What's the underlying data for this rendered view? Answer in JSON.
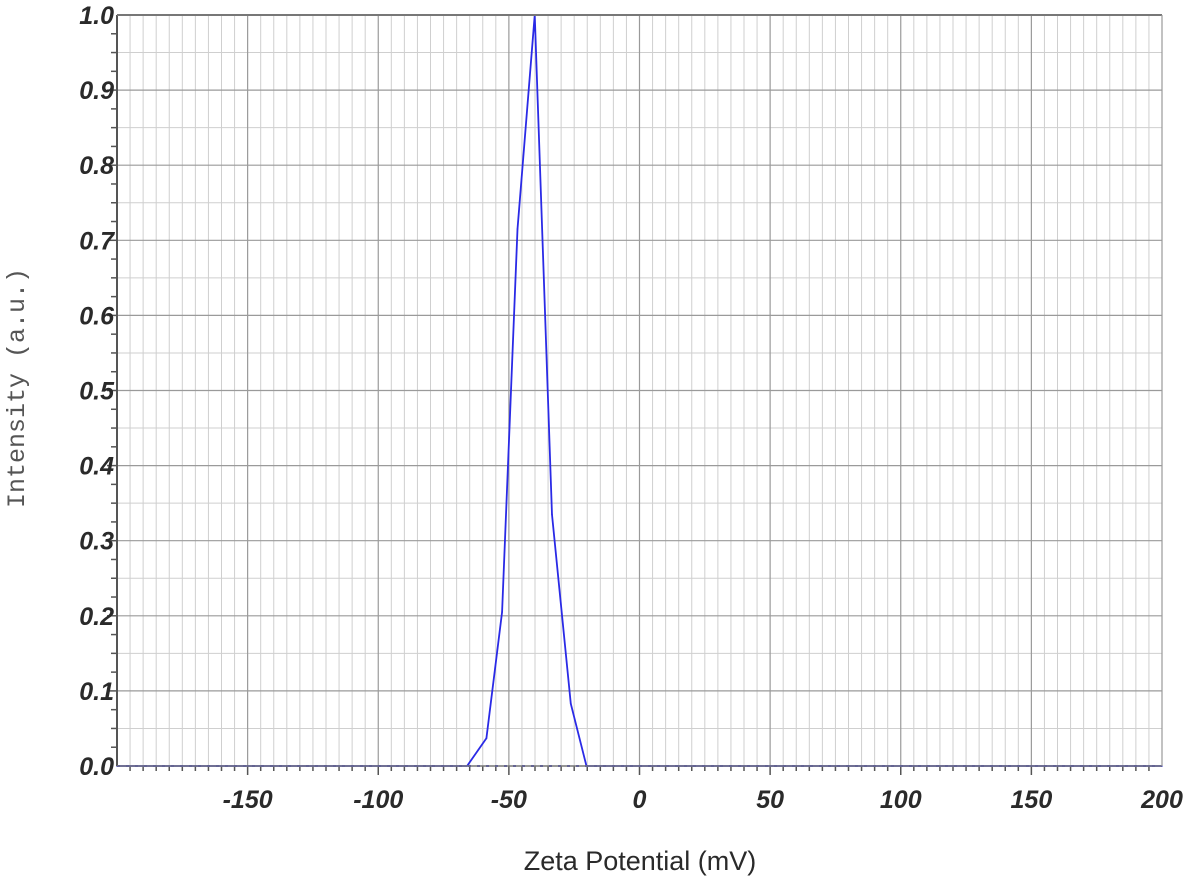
{
  "chart_data": {
    "type": "line",
    "title": "",
    "xlabel": "Zeta Potential (mV)",
    "ylabel": "Intensity (a.u.)",
    "xlim": [
      -200,
      200
    ],
    "ylim": [
      0,
      1.0
    ],
    "x_ticks": [
      -150,
      -100,
      -50,
      0,
      50,
      100,
      150,
      200
    ],
    "x_tick_labels": [
      "-150",
      "-100",
      "-50",
      "0",
      "50",
      "100",
      "150",
      "200"
    ],
    "y_ticks": [
      0.0,
      0.1,
      0.2,
      0.3,
      0.4,
      0.5,
      0.6,
      0.7,
      0.8,
      0.9,
      1.0
    ],
    "y_tick_labels": [
      "0.0",
      "0.1",
      "0.2",
      "0.3",
      "0.4",
      "0.5",
      "0.6",
      "0.7",
      "0.8",
      "0.9",
      "1.0"
    ],
    "grid": true,
    "legend": "none",
    "line_color": "#2a2ae6",
    "series": [
      {
        "x": [
          -200,
          -66,
          -58.6,
          -52.6,
          -46.7,
          -40.1,
          -33.5,
          -26.3,
          -20.3,
          200
        ],
        "y": [
          0,
          0,
          0.037,
          0.205,
          0.715,
          1.0,
          0.335,
          0.083,
          0,
          0
        ]
      }
    ]
  }
}
